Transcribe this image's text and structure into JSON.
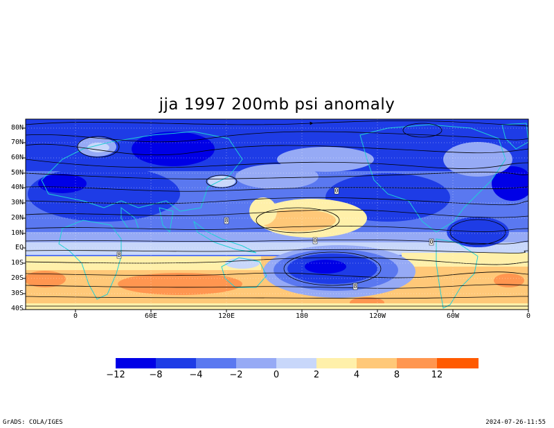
{
  "title": "jja 1997 200mb psi anomaly",
  "lat_labels": [
    "80N",
    "70N",
    "60N",
    "50N",
    "40N",
    "30N",
    "20N",
    "10N",
    "EQ",
    "10S",
    "20S",
    "30S",
    "40S"
  ],
  "lon_labels": [
    "0",
    "60E",
    "120E",
    "180",
    "120W",
    "60W",
    "0"
  ],
  "colorbar": {
    "labels": [
      "−12",
      "−8",
      "−4",
      "−2",
      "0",
      "2",
      "4",
      "8",
      "12"
    ],
    "levels": [
      -12,
      -8,
      -4,
      -2,
      0,
      2,
      4,
      8,
      12
    ],
    "colors": [
      "#0000e6",
      "#1e3ce6",
      "#5a78f0",
      "#96aaf5",
      "#c8d7fa",
      "#fff0aa",
      "#ffc878",
      "#ff9650",
      "#ff6400",
      "#ff5a00"
    ]
  },
  "contour_labels": [
    "8",
    "8",
    "8",
    "0",
    "0",
    "0"
  ],
  "footer": {
    "left": "GrADS: COLA/IGES",
    "right": "2024-07-26-11:55"
  },
  "colors": {
    "coast": "#1ecfd6",
    "streamline": "#000000"
  }
}
